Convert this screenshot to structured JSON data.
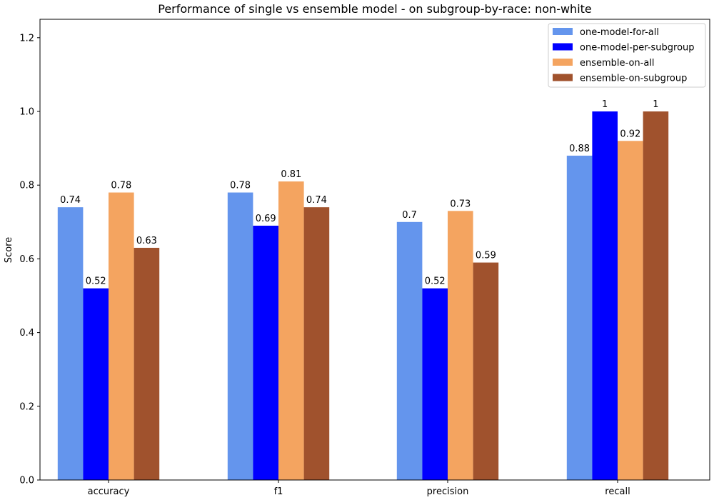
{
  "chart_data": {
    "type": "bar",
    "title": "Performance of single vs ensemble model - on subgroup-by-race: non-white",
    "xlabel": "",
    "ylabel": "Score",
    "categories": [
      "accuracy",
      "f1",
      "precision",
      "recall"
    ],
    "ylim": [
      0,
      1.25
    ],
    "yticks": [
      0.0,
      0.2,
      0.4,
      0.6,
      0.8,
      1.0,
      1.2
    ],
    "ytick_labels": [
      "0.0",
      "0.2",
      "0.4",
      "0.6",
      "0.8",
      "1.0",
      "1.2"
    ],
    "grid": false,
    "legend_position": "top-right",
    "series": [
      {
        "name": "one-model-for-all",
        "color": "#6495ED",
        "values": [
          0.74,
          0.78,
          0.7,
          0.88
        ],
        "labels": [
          "0.74",
          "0.78",
          "0.7",
          "0.88"
        ]
      },
      {
        "name": "one-model-per-subgroup",
        "color": "#0000FF",
        "values": [
          0.52,
          0.69,
          0.52,
          1.0
        ],
        "labels": [
          "0.52",
          "0.69",
          "0.52",
          "1"
        ]
      },
      {
        "name": "ensemble-on-all",
        "color": "#F4A460",
        "values": [
          0.78,
          0.81,
          0.73,
          0.92
        ],
        "labels": [
          "0.78",
          "0.81",
          "0.73",
          "0.92"
        ]
      },
      {
        "name": "ensemble-on-subgroup",
        "color": "#A0522D",
        "values": [
          0.63,
          0.74,
          0.59,
          1.0
        ],
        "labels": [
          "0.63",
          "0.74",
          "0.59",
          "1"
        ]
      }
    ]
  }
}
